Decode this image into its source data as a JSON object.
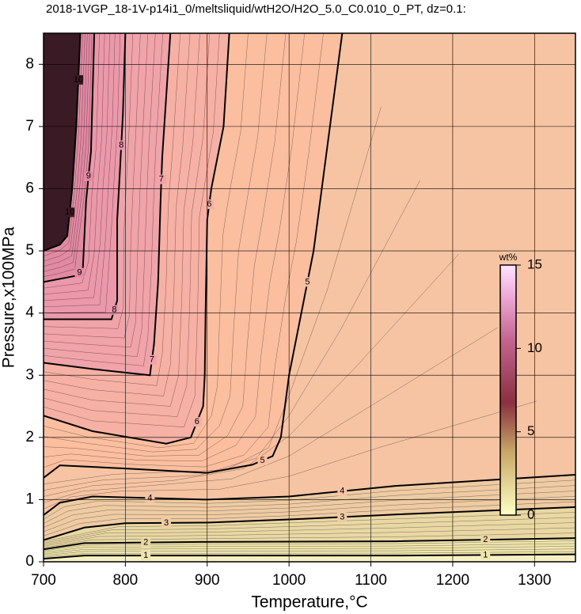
{
  "chart_data": {
    "type": "contour",
    "title": "2018-1VGP_18-1V-p14i1_0/meltsliquid/wtH2O/H2O_5.0_C0.010_0_PT, dz=0.1:",
    "x_label": "Temperature,°C",
    "y_label": "Pressure,x100MPa",
    "xlim": [
      700,
      1350
    ],
    "ylim": [
      0,
      8.5
    ],
    "xticks": [
      700,
      800,
      900,
      1000,
      1100,
      1200,
      1300
    ],
    "yticks": [
      0,
      1,
      2,
      3,
      4,
      5,
      6,
      7,
      8
    ],
    "grid": true,
    "base_color": "#f6f0c2",
    "contours": [
      {
        "level": 1,
        "color": "#efe4ac",
        "x": [
          700,
          750,
          900,
          1130,
          1350
        ],
        "y": [
          0.05,
          0.1,
          0.1,
          0.1,
          0.12
        ]
      },
      {
        "level": 2,
        "color": "#ead8a4",
        "x": [
          700,
          750,
          900,
          1130,
          1350
        ],
        "y": [
          0.2,
          0.3,
          0.32,
          0.33,
          0.38
        ]
      },
      {
        "level": 3,
        "color": "#eecba2",
        "x": [
          700,
          750,
          800,
          900,
          1000,
          1130,
          1350
        ],
        "y": [
          0.35,
          0.55,
          0.62,
          0.63,
          0.68,
          0.76,
          0.88
        ]
      },
      {
        "level": 4,
        "color": "#f6c4a2",
        "x": [
          700,
          720,
          760,
          900,
          1000,
          1130,
          1350
        ],
        "y": [
          0.75,
          0.95,
          1.05,
          1.0,
          1.05,
          1.22,
          1.4
        ]
      },
      {
        "level": 5,
        "color": "#fbbfa0",
        "x": [
          700,
          720,
          800,
          900,
          955,
          980,
          990,
          1000,
          1015,
          1030,
          1045,
          1065
        ],
        "y": [
          1.35,
          1.55,
          1.5,
          1.43,
          1.56,
          1.7,
          2.0,
          3.0,
          4.0,
          5.0,
          6.5,
          8.5
        ]
      },
      {
        "level": 6,
        "color": "#f6b0a4",
        "x": [
          700,
          760,
          850,
          880,
          895,
          897,
          898,
          900,
          905,
          920,
          927
        ],
        "y": [
          2.35,
          2.1,
          1.9,
          2.0,
          2.5,
          3.0,
          4.0,
          5.5,
          6.0,
          7.0,
          8.5
        ]
      },
      {
        "level": 7,
        "color": "#f0a3a8",
        "x": [
          700,
          760,
          830,
          835,
          840,
          843,
          845,
          855
        ],
        "y": [
          3.2,
          3.1,
          3.0,
          3.5,
          4.5,
          5.8,
          6.5,
          8.5
        ]
      },
      {
        "level": 8,
        "color": "#eb98aa",
        "x": [
          700,
          740,
          783,
          790,
          790,
          793,
          797,
          800
        ],
        "y": [
          3.9,
          3.9,
          3.9,
          4.2,
          5.5,
          6.2,
          7.2,
          8.5
        ]
      },
      {
        "level": 9,
        "color": "#e28aa4",
        "x": [
          700,
          720,
          740,
          748,
          752,
          758,
          762
        ],
        "y": [
          4.5,
          4.55,
          4.6,
          4.7,
          5.8,
          6.6,
          8.5
        ]
      },
      {
        "level": 10,
        "color": "#3a1a24",
        "x": [
          700,
          720,
          729,
          735,
          740,
          745
        ],
        "y": [
          5.0,
          5.1,
          5.24,
          6.0,
          7.0,
          8.5
        ]
      }
    ],
    "colorbar": {
      "label": "wt%",
      "lim": [
        0,
        15
      ],
      "ticks": [
        0,
        5,
        10,
        15
      ]
    }
  }
}
